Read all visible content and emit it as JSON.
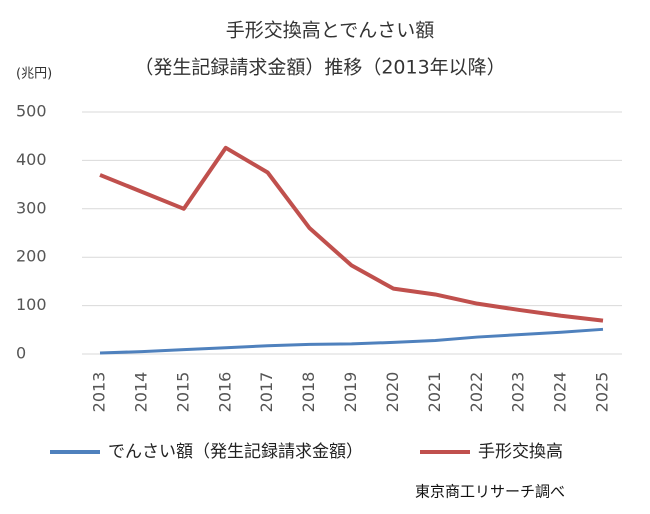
{
  "chart_data": {
    "type": "line",
    "title": "手形交換高とでんさい額",
    "subtitle": "（発生記録請求金額）推移（2013年以降）",
    "y_unit": "(兆円)",
    "source": "東京商工リサーチ調べ",
    "categories": [
      "2013",
      "2014",
      "2015",
      "2016",
      "2017",
      "2018",
      "2019",
      "2020",
      "2021",
      "2022",
      "2023",
      "2024",
      "2025"
    ],
    "series": [
      {
        "name": "でんさい額（発生記録請求金額）",
        "color": "#4f81bd",
        "values": [
          2,
          5,
          9,
          13,
          17,
          20,
          21,
          24,
          28,
          35,
          40,
          45,
          51
        ]
      },
      {
        "name": "手形交換高",
        "color": "#c0504d",
        "values": [
          370,
          335,
          300,
          426,
          375,
          260,
          183,
          135,
          123,
          104,
          91,
          79,
          69
        ]
      }
    ],
    "ylim": [
      0,
      500
    ],
    "yticks": [
      0,
      100,
      200,
      300,
      400,
      500
    ],
    "grid": true
  }
}
